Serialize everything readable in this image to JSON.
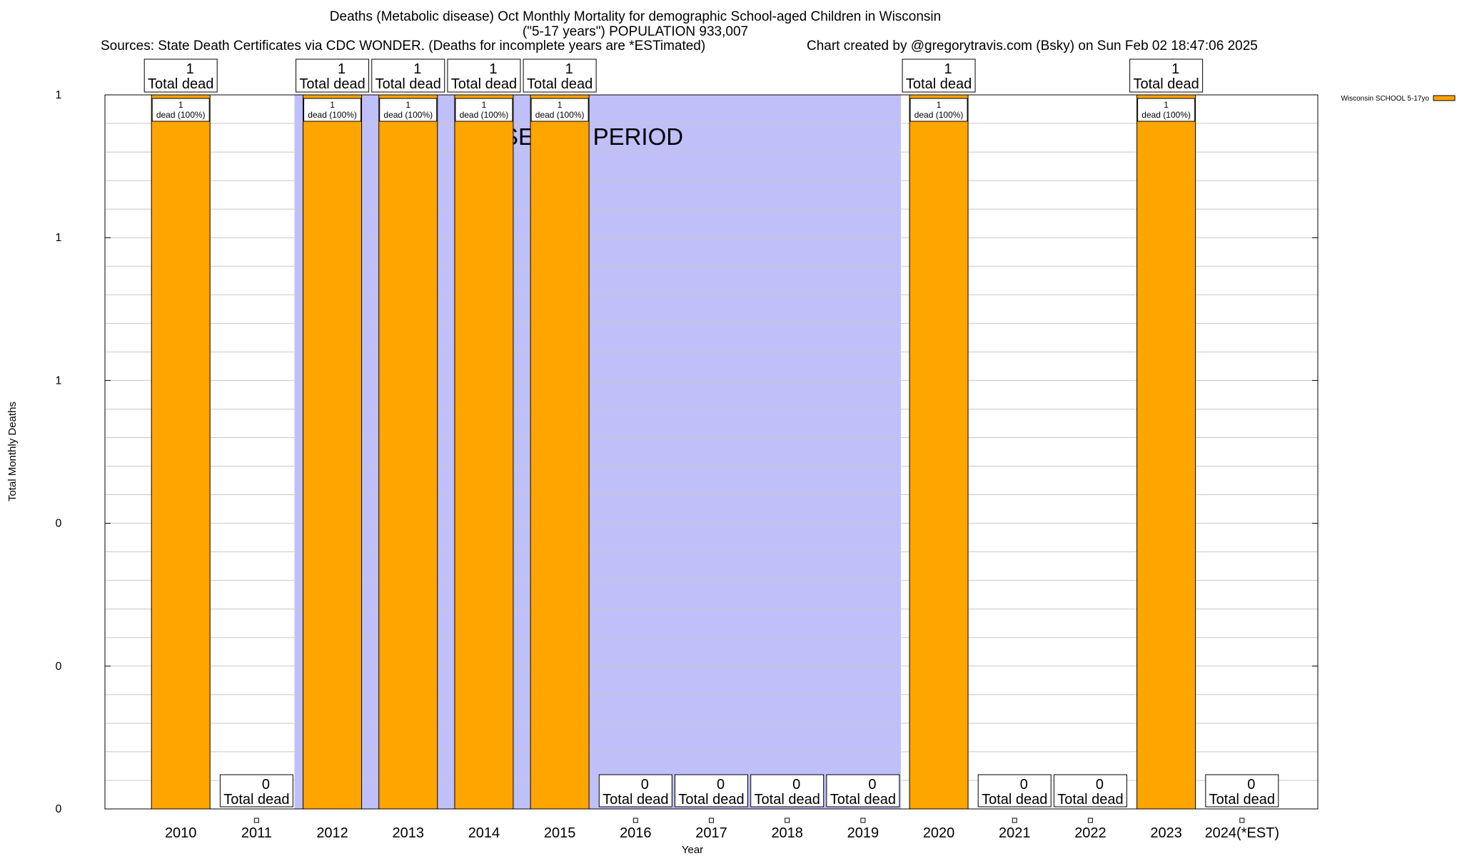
{
  "header": {
    "title": "Deaths (Metabolic disease) Oct Monthly Mortality for demographic School-aged Children in Wisconsin",
    "subtitle": "(\"5-17 years\") POPULATION 933,007",
    "sources": "Sources: State Death Certificates via CDC WONDER. (Deaths for incomplete years are *ESTimated)",
    "credit": "Chart created by @gregorytravis.com (Bsky) on Sun Feb 02 18:47:06 2025"
  },
  "colors": {
    "bar": "#ffa500",
    "baseline": "#bfbffa",
    "grid": "#c8c8c8"
  },
  "chart_data": {
    "type": "bar",
    "title": "Deaths (Metabolic disease) Oct Monthly Mortality for demographic School-aged Children in Wisconsin",
    "xlabel": "Year",
    "ylabel": "Total Monthly Deaths",
    "ylim": [
      0,
      1
    ],
    "ytick_labels": [
      "0",
      "0",
      "0",
      "1",
      "1",
      "1"
    ],
    "grid": true,
    "legend_position": "top-right",
    "categories": [
      "2010",
      "2011",
      "2012",
      "2013",
      "2014",
      "2015",
      "2016",
      "2017",
      "2018",
      "2019",
      "2020",
      "2021",
      "2022",
      "2023",
      "2024(*EST)"
    ],
    "series": [
      {
        "name": "Wisconsin SCHOOL 5-17yo",
        "values": [
          1,
          0,
          1,
          1,
          1,
          1,
          0,
          0,
          0,
          0,
          1,
          0,
          0,
          1,
          0
        ]
      }
    ],
    "top_labels": [
      "1",
      "0",
      "1",
      "1",
      "1",
      "1",
      "0",
      "0",
      "0",
      "0",
      "1",
      "0",
      "0",
      "1",
      "0"
    ],
    "top_label_caption": "Total dead",
    "inner_labels": [
      "1",
      "",
      "1",
      "1",
      "1",
      "1",
      "",
      "",
      "",
      "",
      "1",
      "",
      "",
      "1",
      ""
    ],
    "inner_label_caption": "dead (100%)",
    "annotation": "BASELINE PERIOD",
    "baseline_range": [
      "2012",
      "2019"
    ]
  }
}
